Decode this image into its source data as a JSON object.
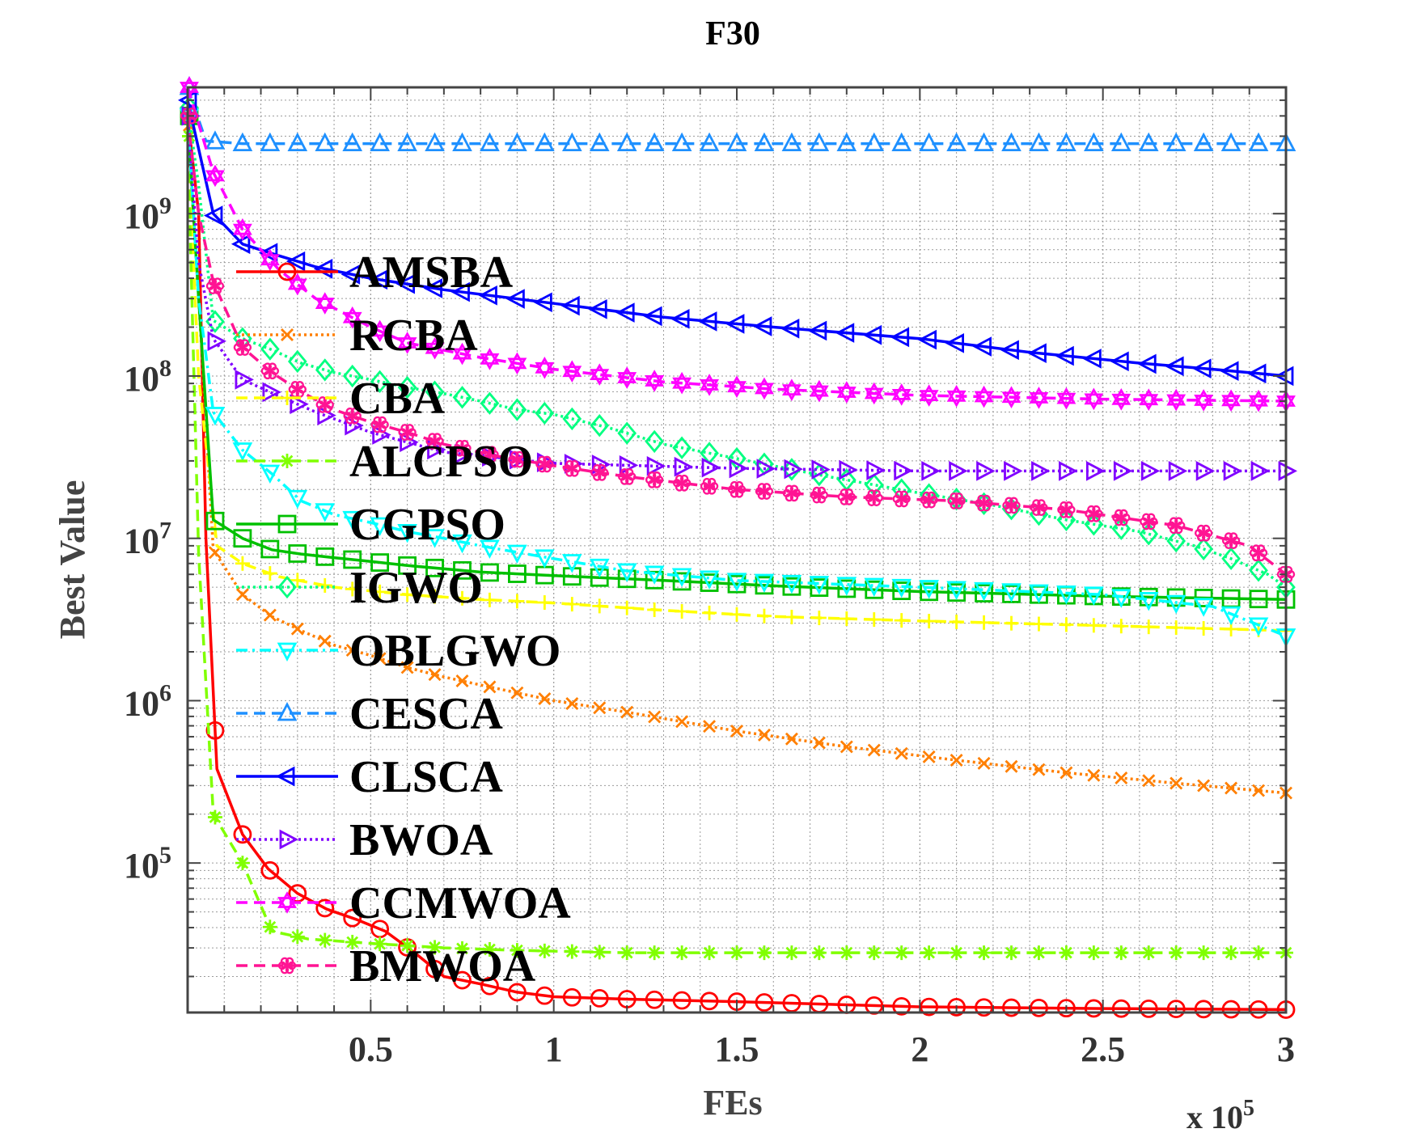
{
  "chart_data": {
    "type": "line",
    "title": "F30",
    "xlabel": "FEs",
    "ylabel": "Best Value",
    "x_multiplier_label": "x 10",
    "x_multiplier_exp": "5",
    "y_scale": "log",
    "xlim": [
      0,
      300000
    ],
    "ylim": [
      12000,
      6000000000
    ],
    "x_ticks": [
      50000,
      100000,
      150000,
      200000,
      250000,
      300000
    ],
    "x_tick_labels": [
      "0.5",
      "1",
      "1.5",
      "2",
      "2.5",
      "3"
    ],
    "y_ticks": [
      100000,
      1000000,
      10000000,
      100000000,
      1000000000
    ],
    "y_tick_base": "10",
    "y_tick_exps": [
      "5",
      "6",
      "7",
      "8",
      "9"
    ],
    "grid": true,
    "legend_position": "left",
    "series": [
      {
        "name": "AMSBA",
        "color": "#ff0000",
        "dash": "solid",
        "marker": "circle",
        "points": [
          [
            0,
            4000000000
          ],
          [
            3000,
            1000000000
          ],
          [
            5000,
            10000000
          ],
          [
            8000,
            380000
          ],
          [
            15000,
            150000
          ],
          [
            22000,
            92000
          ],
          [
            30000,
            65000
          ],
          [
            38000,
            52000
          ],
          [
            46000,
            45000
          ],
          [
            54000,
            38000
          ],
          [
            62000,
            28000
          ],
          [
            70000,
            20000
          ],
          [
            80000,
            18000
          ],
          [
            90000,
            16000
          ],
          [
            100000,
            15000
          ],
          [
            120000,
            14500
          ],
          [
            150000,
            14000
          ],
          [
            200000,
            13000
          ],
          [
            250000,
            12700
          ],
          [
            300000,
            12500
          ]
        ]
      },
      {
        "name": "RCBA",
        "color": "#ff7f00",
        "dash": "dotted",
        "marker": "x",
        "points": [
          [
            0,
            3500000000
          ],
          [
            3000,
            300000000
          ],
          [
            7000,
            8500000
          ],
          [
            15000,
            4500000
          ],
          [
            23000,
            3300000
          ],
          [
            31000,
            2700000
          ],
          [
            40000,
            2200000
          ],
          [
            50000,
            1900000
          ],
          [
            60000,
            1600000
          ],
          [
            70000,
            1400000
          ],
          [
            80000,
            1250000
          ],
          [
            100000,
            1000000
          ],
          [
            120000,
            850000
          ],
          [
            150000,
            650000
          ],
          [
            180000,
            520000
          ],
          [
            210000,
            430000
          ],
          [
            240000,
            360000
          ],
          [
            270000,
            310000
          ],
          [
            300000,
            270000
          ]
        ]
      },
      {
        "name": "CBA",
        "color": "#ffff00",
        "dash": "dashed",
        "marker": "plus",
        "points": [
          [
            0,
            3000000000
          ],
          [
            3000,
            100000000
          ],
          [
            8000,
            9000000
          ],
          [
            15000,
            7000000
          ],
          [
            25000,
            5800000
          ],
          [
            40000,
            5000000
          ],
          [
            60000,
            4500000
          ],
          [
            80000,
            4200000
          ],
          [
            100000,
            4000000
          ],
          [
            130000,
            3600000
          ],
          [
            160000,
            3300000
          ],
          [
            200000,
            3100000
          ],
          [
            250000,
            2900000
          ],
          [
            300000,
            2700000
          ]
        ]
      },
      {
        "name": "ALCPSO",
        "color": "#80ff00",
        "dash": "dashed",
        "marker": "asterisk",
        "points": [
          [
            0,
            3000000000
          ],
          [
            3000,
            8000000
          ],
          [
            7000,
            200000
          ],
          [
            15000,
            100000
          ],
          [
            23000,
            38000
          ],
          [
            33000,
            34000
          ],
          [
            50000,
            32000
          ],
          [
            70000,
            30000
          ],
          [
            90000,
            29000
          ],
          [
            120000,
            28000
          ],
          [
            160000,
            28000
          ],
          [
            200000,
            28000
          ],
          [
            250000,
            28000
          ],
          [
            300000,
            28000
          ]
        ]
      },
      {
        "name": "CGPSO",
        "color": "#00c000",
        "dash": "solid",
        "marker": "square",
        "points": [
          [
            0,
            4000000000
          ],
          [
            3000,
            300000000
          ],
          [
            7000,
            13000000
          ],
          [
            15000,
            10000000
          ],
          [
            23000,
            8500000
          ],
          [
            31000,
            8000000
          ],
          [
            40000,
            7600000
          ],
          [
            50000,
            7200000
          ],
          [
            60000,
            6800000
          ],
          [
            80000,
            6200000
          ],
          [
            100000,
            5900000
          ],
          [
            130000,
            5500000
          ],
          [
            160000,
            5100000
          ],
          [
            200000,
            4700000
          ],
          [
            250000,
            4400000
          ],
          [
            300000,
            4200000
          ]
        ]
      },
      {
        "name": "IGWO",
        "color": "#00ff80",
        "dash": "dotted",
        "marker": "diamond",
        "points": [
          [
            0,
            4500000000
          ],
          [
            3000,
            1500000000
          ],
          [
            7000,
            220000000
          ],
          [
            15000,
            170000000
          ],
          [
            23000,
            145000000
          ],
          [
            31000,
            120000000
          ],
          [
            40000,
            105000000
          ],
          [
            50000,
            95000000
          ],
          [
            60000,
            85000000
          ],
          [
            70000,
            78000000
          ],
          [
            80000,
            70000000
          ],
          [
            90000,
            62000000
          ],
          [
            100000,
            58000000
          ],
          [
            115000,
            48000000
          ],
          [
            130000,
            38000000
          ],
          [
            150000,
            31000000
          ],
          [
            175000,
            24000000
          ],
          [
            200000,
            19000000
          ],
          [
            220000,
            16000000
          ],
          [
            240000,
            13000000
          ],
          [
            260000,
            11000000
          ],
          [
            275000,
            9000000
          ],
          [
            285000,
            7500000
          ],
          [
            295000,
            6000000
          ],
          [
            300000,
            5000000
          ]
        ]
      },
      {
        "name": "OBLGWO",
        "color": "#00ffff",
        "dash": "dashdot",
        "marker": "triangle-down",
        "points": [
          [
            0,
            4000000000
          ],
          [
            3000,
            300000000
          ],
          [
            7000,
            60000000
          ],
          [
            15000,
            35000000
          ],
          [
            23000,
            25000000
          ],
          [
            31000,
            17000000
          ],
          [
            40000,
            14000000
          ],
          [
            50000,
            12500000
          ],
          [
            60000,
            11000000
          ],
          [
            70000,
            10000000
          ],
          [
            80000,
            9000000
          ],
          [
            90000,
            8200000
          ],
          [
            100000,
            7500000
          ],
          [
            120000,
            6300000
          ],
          [
            150000,
            5500000
          ],
          [
            200000,
            5000000
          ],
          [
            250000,
            4500000
          ],
          [
            280000,
            3800000
          ],
          [
            300000,
            2500000
          ]
        ]
      },
      {
        "name": "CESCA",
        "color": "#1e90ff",
        "dash": "dashed",
        "marker": "triangle-up",
        "points": [
          [
            0,
            6000000000
          ],
          [
            5000,
            2800000000
          ],
          [
            15000,
            2700000000
          ],
          [
            50000,
            2700000000
          ],
          [
            100000,
            2700000000
          ],
          [
            150000,
            2700000000
          ],
          [
            200000,
            2700000000
          ],
          [
            250000,
            2700000000
          ],
          [
            300000,
            2700000000
          ]
        ]
      },
      {
        "name": "CLSCA",
        "color": "#0000ff",
        "dash": "solid",
        "marker": "triangle-left",
        "points": [
          [
            0,
            5000000000
          ],
          [
            7000,
            1000000000
          ],
          [
            15000,
            650000000
          ],
          [
            25000,
            550000000
          ],
          [
            35000,
            470000000
          ],
          [
            50000,
            400000000
          ],
          [
            70000,
            340000000
          ],
          [
            100000,
            280000000
          ],
          [
            130000,
            230000000
          ],
          [
            160000,
            200000000
          ],
          [
            200000,
            170000000
          ],
          [
            230000,
            140000000
          ],
          [
            260000,
            120000000
          ],
          [
            280000,
            110000000
          ],
          [
            300000,
            100000000
          ]
        ]
      },
      {
        "name": "BWOA",
        "color": "#8000ff",
        "dash": "dotted",
        "marker": "triangle-right",
        "points": [
          [
            0,
            4000000000
          ],
          [
            3000,
            500000000
          ],
          [
            7000,
            170000000
          ],
          [
            15000,
            95000000
          ],
          [
            25000,
            75000000
          ],
          [
            35000,
            60000000
          ],
          [
            50000,
            45000000
          ],
          [
            70000,
            34000000
          ],
          [
            100000,
            29000000
          ],
          [
            150000,
            27000000
          ],
          [
            200000,
            26000000
          ],
          [
            250000,
            26000000
          ],
          [
            300000,
            26000000
          ]
        ]
      },
      {
        "name": "CCMWOA",
        "color": "#ff00ff",
        "dash": "dashed",
        "marker": "hexagram",
        "points": [
          [
            0,
            6000000000
          ],
          [
            7000,
            1800000000
          ],
          [
            15000,
            800000000
          ],
          [
            25000,
            450000000
          ],
          [
            35000,
            300000000
          ],
          [
            50000,
            200000000
          ],
          [
            60000,
            160000000
          ],
          [
            80000,
            130000000
          ],
          [
            100000,
            110000000
          ],
          [
            130000,
            92000000
          ],
          [
            160000,
            83000000
          ],
          [
            200000,
            76000000
          ],
          [
            250000,
            72000000
          ],
          [
            300000,
            70000000
          ]
        ]
      },
      {
        "name": "BMWOA",
        "color": "#ff1493",
        "dash": "dashed",
        "marker": "flower",
        "points": [
          [
            0,
            4000000000
          ],
          [
            3000,
            1000000000
          ],
          [
            7000,
            380000000
          ],
          [
            15000,
            150000000
          ],
          [
            23000,
            105000000
          ],
          [
            31000,
            80000000
          ],
          [
            40000,
            62000000
          ],
          [
            50000,
            52000000
          ],
          [
            60000,
            45000000
          ],
          [
            70000,
            38000000
          ],
          [
            85000,
            32000000
          ],
          [
            100000,
            28000000
          ],
          [
            120000,
            24000000
          ],
          [
            150000,
            20000000
          ],
          [
            180000,
            18000000
          ],
          [
            210000,
            17000000
          ],
          [
            240000,
            15000000
          ],
          [
            270000,
            12000000
          ],
          [
            290000,
            9000000
          ],
          [
            300000,
            6000000
          ]
        ]
      }
    ]
  }
}
